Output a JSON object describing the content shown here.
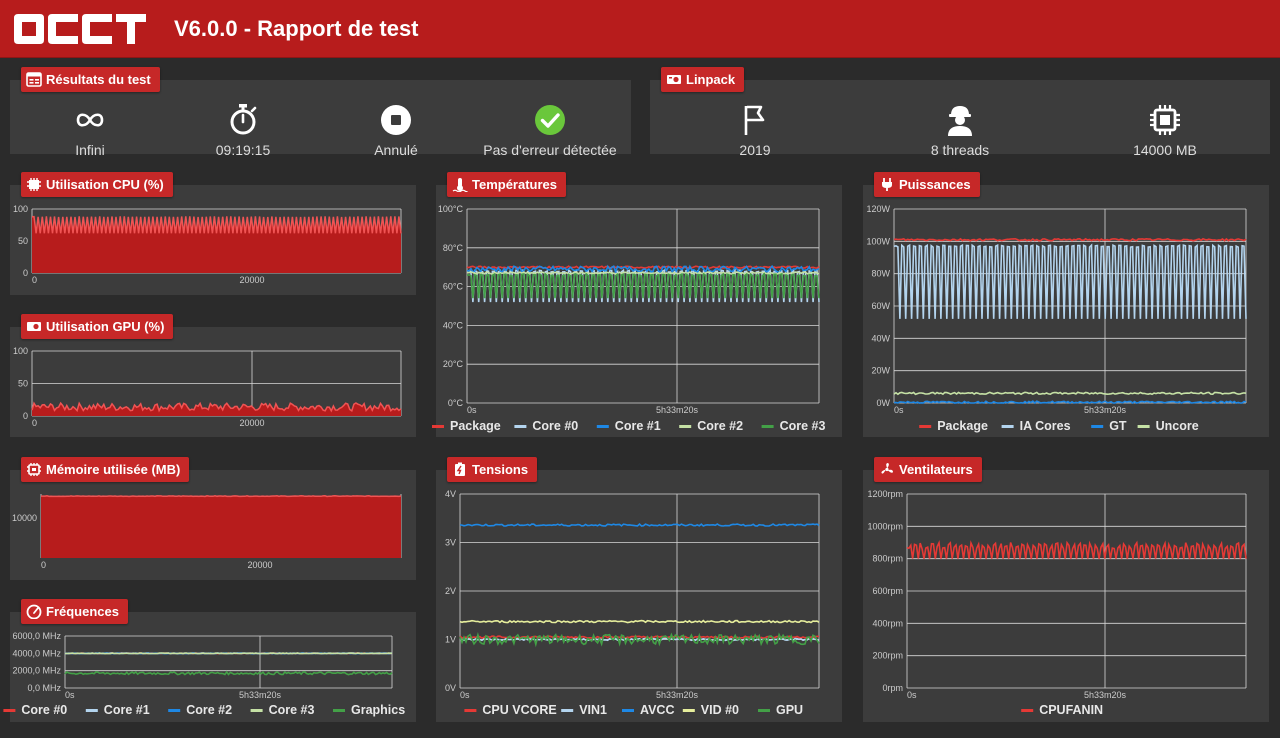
{
  "header": {
    "title": "V6.0.0 - Rapport de test"
  },
  "results": {
    "title": "Résultats du test",
    "items": [
      {
        "icon": "infinity-icon",
        "label": "Infini"
      },
      {
        "icon": "stopwatch-icon",
        "label": "09:19:15"
      },
      {
        "icon": "stop-icon",
        "label": "Annulé"
      },
      {
        "icon": "check-icon",
        "label": "Pas d'erreur détectée"
      }
    ]
  },
  "linpack": {
    "title": "Linpack",
    "items": [
      {
        "icon": "flag-icon",
        "label": "2019"
      },
      {
        "icon": "worker-icon",
        "label": "8 threads"
      },
      {
        "icon": "chip-icon",
        "label": "14000 MB"
      }
    ]
  },
  "charts": [
    {
      "id": "cpu",
      "title": "Utilisation CPU (%)",
      "icon": "cpu-icon",
      "chart_data": {
        "type": "area",
        "yticks": [
          "100",
          "50",
          "0"
        ],
        "xticks": [
          "0",
          "20000"
        ],
        "ylim": [
          0,
          100
        ],
        "series": [
          {
            "name": "CPU",
            "color": "#f05454",
            "level": 88,
            "dips": 85,
            "dipTo": 62
          }
        ]
      }
    },
    {
      "id": "gpu",
      "title": "Utilisation GPU (%)",
      "icon": "gpu-icon",
      "chart_data": {
        "type": "area",
        "yticks": [
          "100",
          "50",
          "0"
        ],
        "xticks": [
          "0",
          "20000"
        ],
        "ylim": [
          0,
          100
        ],
        "series": [
          {
            "name": "GPU",
            "color": "#f05454",
            "level": 14,
            "noise": 6
          }
        ]
      }
    },
    {
      "id": "mem",
      "title": "Mémoire utilisée (MB)",
      "icon": "memory-icon",
      "chart_data": {
        "type": "area",
        "yticks": [
          "10000"
        ],
        "xticks": [
          "0",
          "20000"
        ],
        "ylim": [
          0,
          15000
        ],
        "series": [
          {
            "name": "Mémoire",
            "color": "#f05454",
            "level": 14500
          }
        ]
      }
    },
    {
      "id": "freq",
      "title": "Fréquences",
      "icon": "gauge-icon",
      "chart_data": {
        "type": "line",
        "yticks": [
          "6000,0 MHz",
          "4000,0 MHz",
          "2000,0 MHz",
          "0,0 MHz"
        ],
        "xticks": [
          "0s",
          "5h33m20s"
        ],
        "ylim": [
          0,
          6000
        ],
        "series": [
          {
            "name": "Core #0",
            "color": "#e53935",
            "level": 4000
          },
          {
            "name": "Core #1",
            "color": "#b3d4ee",
            "level": 4000
          },
          {
            "name": "Core #2",
            "color": "#1e88e5",
            "level": 4000
          },
          {
            "name": "Core #3",
            "color": "#c5e1a5",
            "level": 4000
          },
          {
            "name": "Graphics",
            "color": "#43a047",
            "level": 1700,
            "noise": 150
          }
        ]
      }
    },
    {
      "id": "temp",
      "title": "Températures",
      "icon": "thermometer-icon",
      "chart_data": {
        "type": "line",
        "yticks": [
          "100°C",
          "80°C",
          "60°C",
          "40°C",
          "20°C",
          "0°C"
        ],
        "xticks": [
          "0s",
          "5h33m20s"
        ],
        "ylim": [
          0,
          100
        ],
        "series": [
          {
            "name": "Package",
            "color": "#e53935",
            "level": 70
          },
          {
            "name": "Core #0",
            "color": "#b3d4ee",
            "level": 68,
            "dips": 58,
            "dipTo": 52
          },
          {
            "name": "Core #1",
            "color": "#1e88e5",
            "level": 69,
            "noise": 1.5
          },
          {
            "name": "Core #2",
            "color": "#c5e1a5",
            "level": 67
          },
          {
            "name": "Core #3",
            "color": "#43a047",
            "level": 66,
            "dips": 58,
            "dipTo": 54
          }
        ]
      }
    },
    {
      "id": "volt",
      "title": "Tensions",
      "icon": "battery-icon",
      "chart_data": {
        "type": "line",
        "yticks": [
          "4V",
          "3V",
          "2V",
          "1V",
          "0V"
        ],
        "xticks": [
          "0s",
          "5h33m20s"
        ],
        "ylim": [
          0,
          4
        ],
        "series": [
          {
            "name": "CPU VCORE",
            "color": "#e53935",
            "level": 1.05
          },
          {
            "name": "VIN1",
            "color": "#b3d4ee",
            "level": 1.0
          },
          {
            "name": "AVCC",
            "color": "#1e88e5",
            "level": 3.36
          },
          {
            "name": "VID #0",
            "color": "#e6ee9c",
            "level": 1.37
          },
          {
            "name": "GPU",
            "color": "#43a047",
            "level": 1.0,
            "noise": 0.1
          }
        ]
      }
    },
    {
      "id": "power",
      "title": "Puissances",
      "icon": "plug-icon",
      "chart_data": {
        "type": "line",
        "yticks": [
          "120W",
          "100W",
          "80W",
          "60W",
          "40W",
          "20W",
          "0W"
        ],
        "xticks": [
          "0s",
          "5h33m20s"
        ],
        "ylim": [
          0,
          120
        ],
        "series": [
          {
            "name": "Package",
            "color": "#e53935",
            "level": 101
          },
          {
            "name": "IA Cores",
            "color": "#b3d4ee",
            "level": 97,
            "dips": 58,
            "dipTo": 52
          },
          {
            "name": "GT",
            "color": "#1e88e5",
            "level": 0.5
          },
          {
            "name": "Uncore",
            "color": "#c5e1a5",
            "level": 6
          }
        ]
      }
    },
    {
      "id": "fan",
      "title": "Ventilateurs",
      "icon": "fan-icon",
      "chart_data": {
        "type": "line",
        "yticks": [
          "1200rpm",
          "1000rpm",
          "800rpm",
          "600rpm",
          "400rpm",
          "200rpm",
          "0rpm"
        ],
        "xticks": [
          "0s",
          "5h33m20s"
        ],
        "ylim": [
          0,
          1200
        ],
        "series": [
          {
            "name": "CPUFANIN",
            "color": "#e53935",
            "level": 880,
            "dips": 60,
            "dipTo": 800,
            "noise": 20
          }
        ]
      }
    }
  ]
}
